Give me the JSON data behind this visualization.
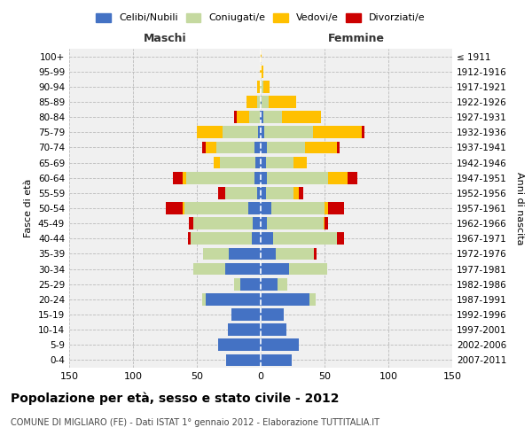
{
  "age_groups": [
    "0-4",
    "5-9",
    "10-14",
    "15-19",
    "20-24",
    "25-29",
    "30-34",
    "35-39",
    "40-44",
    "45-49",
    "50-54",
    "55-59",
    "60-64",
    "65-69",
    "70-74",
    "75-79",
    "80-84",
    "85-89",
    "90-94",
    "95-99",
    "100+"
  ],
  "birth_years": [
    "2007-2011",
    "2002-2006",
    "1997-2001",
    "1992-1996",
    "1987-1991",
    "1982-1986",
    "1977-1981",
    "1972-1976",
    "1967-1971",
    "1962-1966",
    "1957-1961",
    "1952-1956",
    "1947-1951",
    "1942-1946",
    "1937-1941",
    "1932-1936",
    "1927-1931",
    "1922-1926",
    "1917-1921",
    "1912-1916",
    "≤ 1911"
  ],
  "colors": {
    "celibi": "#4472c4",
    "coniugati": "#c5d9a0",
    "vedovi": "#ffc000",
    "divorziati": "#cc0000",
    "background": "#f0f0f0",
    "grid": "#cccccc"
  },
  "maschi": {
    "celibi": [
      27,
      33,
      26,
      23,
      43,
      16,
      28,
      25,
      7,
      6,
      10,
      3,
      5,
      4,
      5,
      2,
      1,
      0,
      0,
      0,
      0
    ],
    "coniugati": [
      0,
      0,
      0,
      0,
      3,
      5,
      25,
      20,
      48,
      47,
      50,
      25,
      53,
      28,
      30,
      28,
      8,
      3,
      1,
      0,
      0
    ],
    "vedovi": [
      0,
      0,
      0,
      0,
      0,
      0,
      0,
      0,
      0,
      0,
      1,
      0,
      3,
      5,
      8,
      20,
      10,
      8,
      2,
      1,
      0
    ],
    "divorziati": [
      0,
      0,
      0,
      0,
      0,
      0,
      0,
      0,
      2,
      3,
      13,
      5,
      8,
      0,
      3,
      0,
      2,
      0,
      0,
      0,
      0
    ]
  },
  "femmine": {
    "celibi": [
      24,
      30,
      20,
      18,
      38,
      13,
      22,
      12,
      10,
      5,
      8,
      4,
      5,
      4,
      5,
      3,
      2,
      1,
      0,
      0,
      0
    ],
    "coniugati": [
      0,
      0,
      0,
      0,
      5,
      8,
      30,
      30,
      50,
      44,
      42,
      22,
      48,
      22,
      30,
      38,
      15,
      5,
      2,
      0,
      0
    ],
    "vedovi": [
      0,
      0,
      0,
      0,
      0,
      0,
      0,
      0,
      0,
      1,
      3,
      4,
      15,
      10,
      25,
      38,
      30,
      22,
      5,
      2,
      1
    ],
    "divorziati": [
      0,
      0,
      0,
      0,
      0,
      0,
      0,
      2,
      5,
      3,
      12,
      3,
      8,
      0,
      2,
      2,
      0,
      0,
      0,
      0,
      0
    ]
  },
  "xlim": 150,
  "title": "Popolazione per età, sesso e stato civile - 2012",
  "subtitle": "COMUNE DI MIGLIARO (FE) - Dati ISTAT 1° gennaio 2012 - Elaborazione TUTTITALIA.IT",
  "ylabel_left": "Fasce di età",
  "ylabel_right": "Anni di nascita",
  "xlabel_maschi": "Maschi",
  "xlabel_femmine": "Femmine"
}
